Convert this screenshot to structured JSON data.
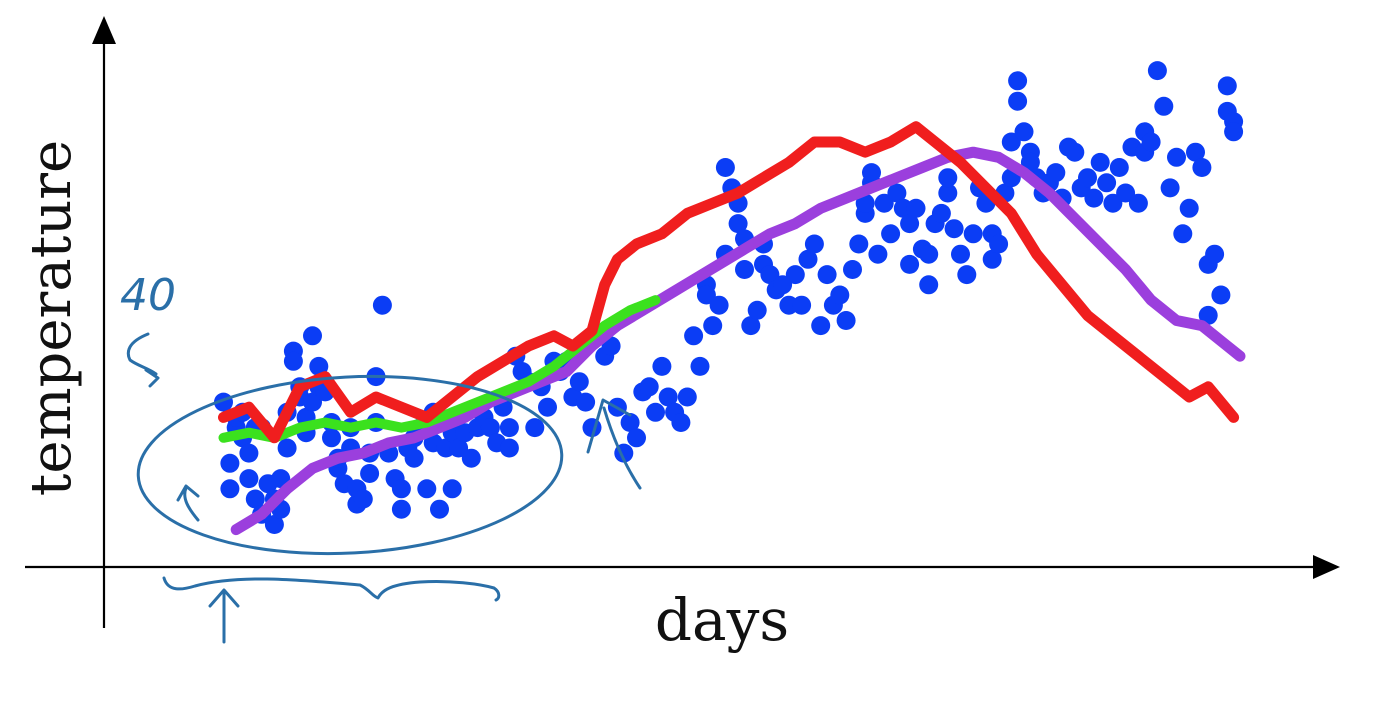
{
  "chart_data": {
    "type": "scatter",
    "title": "",
    "xlabel": "days",
    "ylabel": "temperature",
    "xlim": [
      0,
      170
    ],
    "ylim": [
      0,
      100
    ],
    "grid": false,
    "colors": {
      "points": "#0b3df5",
      "red_line": "#f01e1e",
      "green_line": "#3be11e",
      "purple_line": "#9b3fdd",
      "annotation": "#2a6fa8",
      "axes": "#000000"
    },
    "points": [
      [
        10,
        29
      ],
      [
        11,
        17
      ],
      [
        11,
        12
      ],
      [
        12,
        24
      ],
      [
        12,
        26
      ],
      [
        13,
        22
      ],
      [
        13,
        27
      ],
      [
        14,
        14
      ],
      [
        14,
        19
      ],
      [
        15,
        10
      ],
      [
        15,
        24
      ],
      [
        16,
        7
      ],
      [
        16,
        24
      ],
      [
        17,
        13
      ],
      [
        18,
        5
      ],
      [
        18,
        10
      ],
      [
        19,
        8
      ],
      [
        19,
        14
      ],
      [
        20,
        20
      ],
      [
        20,
        27
      ],
      [
        21,
        39
      ],
      [
        21,
        37
      ],
      [
        22,
        32
      ],
      [
        22,
        30
      ],
      [
        23,
        26
      ],
      [
        23,
        23
      ],
      [
        24,
        29
      ],
      [
        24,
        42
      ],
      [
        25,
        36
      ],
      [
        25,
        32
      ],
      [
        26,
        31
      ],
      [
        27,
        25
      ],
      [
        27,
        22
      ],
      [
        28,
        16
      ],
      [
        28,
        18
      ],
      [
        29,
        13
      ],
      [
        30,
        20
      ],
      [
        30,
        24
      ],
      [
        31,
        9
      ],
      [
        31,
        12
      ],
      [
        32,
        10
      ],
      [
        33,
        15
      ],
      [
        33,
        19
      ],
      [
        34,
        25
      ],
      [
        34,
        34
      ],
      [
        35,
        48
      ],
      [
        36,
        19
      ],
      [
        37,
        14
      ],
      [
        38,
        8
      ],
      [
        38,
        12
      ],
      [
        39,
        20
      ],
      [
        40,
        18
      ],
      [
        40,
        22
      ],
      [
        41,
        24
      ],
      [
        42,
        12
      ],
      [
        43,
        27
      ],
      [
        43,
        21
      ],
      [
        44,
        8
      ],
      [
        45,
        20
      ],
      [
        46,
        23
      ],
      [
        46,
        12
      ],
      [
        47,
        20
      ],
      [
        48,
        23
      ],
      [
        49,
        18
      ],
      [
        50,
        24
      ],
      [
        51,
        26
      ],
      [
        52,
        24
      ],
      [
        53,
        21
      ],
      [
        54,
        28
      ],
      [
        55,
        24
      ],
      [
        55,
        20
      ],
      [
        56,
        38
      ],
      [
        57,
        35
      ],
      [
        58,
        33
      ],
      [
        59,
        24
      ],
      [
        60,
        32
      ],
      [
        61,
        28
      ],
      [
        62,
        37
      ],
      [
        63,
        35
      ],
      [
        64,
        37
      ],
      [
        65,
        30
      ],
      [
        66,
        33
      ],
      [
        67,
        29
      ],
      [
        68,
        24
      ],
      [
        69,
        42
      ],
      [
        70,
        38
      ],
      [
        71,
        40
      ],
      [
        72,
        28
      ],
      [
        73,
        19
      ],
      [
        74,
        25
      ],
      [
        75,
        22
      ],
      [
        76,
        31
      ],
      [
        77,
        32
      ],
      [
        78,
        27
      ],
      [
        79,
        36
      ],
      [
        80,
        30
      ],
      [
        81,
        27
      ],
      [
        82,
        25
      ],
      [
        83,
        30
      ],
      [
        84,
        42
      ],
      [
        85,
        36
      ],
      [
        86,
        52
      ],
      [
        86,
        50
      ],
      [
        87,
        44
      ],
      [
        88,
        48
      ],
      [
        89,
        58
      ],
      [
        89,
        75
      ],
      [
        90,
        71
      ],
      [
        91,
        68
      ],
      [
        91,
        64
      ],
      [
        92,
        61
      ],
      [
        92,
        55
      ],
      [
        93,
        44
      ],
      [
        94,
        47
      ],
      [
        95,
        56
      ],
      [
        95,
        60
      ],
      [
        96,
        54
      ],
      [
        97,
        51
      ],
      [
        98,
        52
      ],
      [
        99,
        48
      ],
      [
        100,
        54
      ],
      [
        101,
        48
      ],
      [
        102,
        57
      ],
      [
        103,
        60
      ],
      [
        104,
        44
      ],
      [
        105,
        54
      ],
      [
        106,
        48
      ],
      [
        107,
        50
      ],
      [
        108,
        45
      ],
      [
        109,
        55
      ],
      [
        110,
        60
      ],
      [
        111,
        66
      ],
      [
        111,
        68
      ],
      [
        112,
        72
      ],
      [
        112,
        74
      ],
      [
        113,
        58
      ],
      [
        114,
        68
      ],
      [
        115,
        62
      ],
      [
        116,
        70
      ],
      [
        117,
        67
      ],
      [
        118,
        56
      ],
      [
        118,
        64
      ],
      [
        119,
        67
      ],
      [
        120,
        59
      ],
      [
        121,
        52
      ],
      [
        121,
        58
      ],
      [
        122,
        64
      ],
      [
        123,
        66
      ],
      [
        124,
        70
      ],
      [
        124,
        73
      ],
      [
        125,
        63
      ],
      [
        126,
        58
      ],
      [
        127,
        54
      ],
      [
        128,
        62
      ],
      [
        129,
        71
      ],
      [
        130,
        68
      ],
      [
        131,
        62
      ],
      [
        131,
        57
      ],
      [
        132,
        60
      ],
      [
        133,
        70
      ],
      [
        134,
        73
      ],
      [
        134,
        80
      ],
      [
        135,
        88
      ],
      [
        135,
        92
      ],
      [
        136,
        82
      ],
      [
        137,
        78
      ],
      [
        137,
        76
      ],
      [
        138,
        73
      ],
      [
        139,
        70
      ],
      [
        140,
        72
      ],
      [
        141,
        74
      ],
      [
        142,
        69
      ],
      [
        143,
        79
      ],
      [
        144,
        78
      ],
      [
        145,
        71
      ],
      [
        146,
        73
      ],
      [
        147,
        69
      ],
      [
        148,
        76
      ],
      [
        149,
        72
      ],
      [
        150,
        68
      ],
      [
        151,
        75
      ],
      [
        152,
        70
      ],
      [
        153,
        79
      ],
      [
        154,
        68
      ],
      [
        155,
        82
      ],
      [
        155,
        78
      ],
      [
        156,
        80
      ],
      [
        157,
        94
      ],
      [
        158,
        87
      ],
      [
        159,
        71
      ],
      [
        160,
        77
      ],
      [
        161,
        62
      ],
      [
        162,
        67
      ],
      [
        163,
        78
      ],
      [
        164,
        75
      ],
      [
        165,
        56
      ],
      [
        165,
        46
      ],
      [
        166,
        58
      ],
      [
        167,
        50
      ],
      [
        168,
        86
      ],
      [
        168,
        91
      ],
      [
        169,
        84
      ],
      [
        169,
        82
      ]
    ],
    "series": [
      {
        "values": [
          [
            10,
            26
          ],
          [
            14,
            28
          ],
          [
            18,
            22
          ],
          [
            22,
            32
          ],
          [
            26,
            34
          ],
          [
            30,
            27
          ],
          [
            34,
            30
          ],
          [
            38,
            28
          ],
          [
            42,
            26
          ],
          [
            46,
            30
          ],
          [
            50,
            34
          ],
          [
            54,
            37
          ],
          [
            58,
            40
          ],
          [
            62,
            42
          ],
          [
            65,
            40
          ],
          [
            68,
            43
          ],
          [
            70,
            52
          ],
          [
            72,
            57
          ],
          [
            75,
            60
          ],
          [
            79,
            62
          ],
          [
            83,
            66
          ],
          [
            87,
            68
          ],
          [
            91,
            70
          ],
          [
            95,
            73
          ],
          [
            99,
            76
          ],
          [
            103,
            80
          ],
          [
            107,
            80
          ],
          [
            111,
            78
          ],
          [
            115,
            80
          ],
          [
            119,
            83
          ],
          [
            122,
            80
          ],
          [
            126,
            76
          ],
          [
            130,
            71
          ],
          [
            134,
            66
          ],
          [
            138,
            58
          ],
          [
            142,
            52
          ],
          [
            146,
            46
          ],
          [
            150,
            42
          ],
          [
            154,
            38
          ],
          [
            158,
            34
          ],
          [
            162,
            30
          ],
          [
            165,
            32
          ],
          [
            169,
            26
          ]
        ]
      },
      {
        "values": [
          [
            10,
            22
          ],
          [
            14,
            23
          ],
          [
            18,
            22
          ],
          [
            22,
            24
          ],
          [
            26,
            25
          ],
          [
            30,
            24
          ],
          [
            34,
            25
          ],
          [
            38,
            24
          ],
          [
            42,
            25
          ],
          [
            46,
            27
          ],
          [
            50,
            29
          ],
          [
            54,
            31
          ],
          [
            58,
            33
          ],
          [
            62,
            36
          ],
          [
            66,
            40
          ],
          [
            70,
            44
          ],
          [
            74,
            47
          ],
          [
            78,
            49
          ]
        ]
      },
      {
        "values": [
          [
            12,
            4
          ],
          [
            16,
            7
          ],
          [
            20,
            12
          ],
          [
            24,
            16
          ],
          [
            28,
            18
          ],
          [
            32,
            19
          ],
          [
            36,
            21
          ],
          [
            40,
            22
          ],
          [
            44,
            24
          ],
          [
            48,
            26
          ],
          [
            52,
            29
          ],
          [
            56,
            31
          ],
          [
            60,
            33
          ],
          [
            64,
            35
          ],
          [
            68,
            40
          ],
          [
            72,
            44
          ],
          [
            76,
            47
          ],
          [
            80,
            50
          ],
          [
            84,
            53
          ],
          [
            88,
            56
          ],
          [
            92,
            59
          ],
          [
            96,
            62
          ],
          [
            100,
            64
          ],
          [
            104,
            67
          ],
          [
            108,
            69
          ],
          [
            112,
            71
          ],
          [
            116,
            73
          ],
          [
            120,
            75
          ],
          [
            124,
            77
          ],
          [
            128,
            78
          ],
          [
            132,
            77
          ],
          [
            136,
            74
          ],
          [
            140,
            70
          ],
          [
            144,
            65
          ],
          [
            148,
            60
          ],
          [
            152,
            55
          ],
          [
            156,
            49
          ],
          [
            160,
            45
          ],
          [
            164,
            44
          ],
          [
            168,
            40
          ],
          [
            170,
            38
          ]
        ]
      }
    ],
    "annotations": {
      "handwritten": "40"
    }
  }
}
